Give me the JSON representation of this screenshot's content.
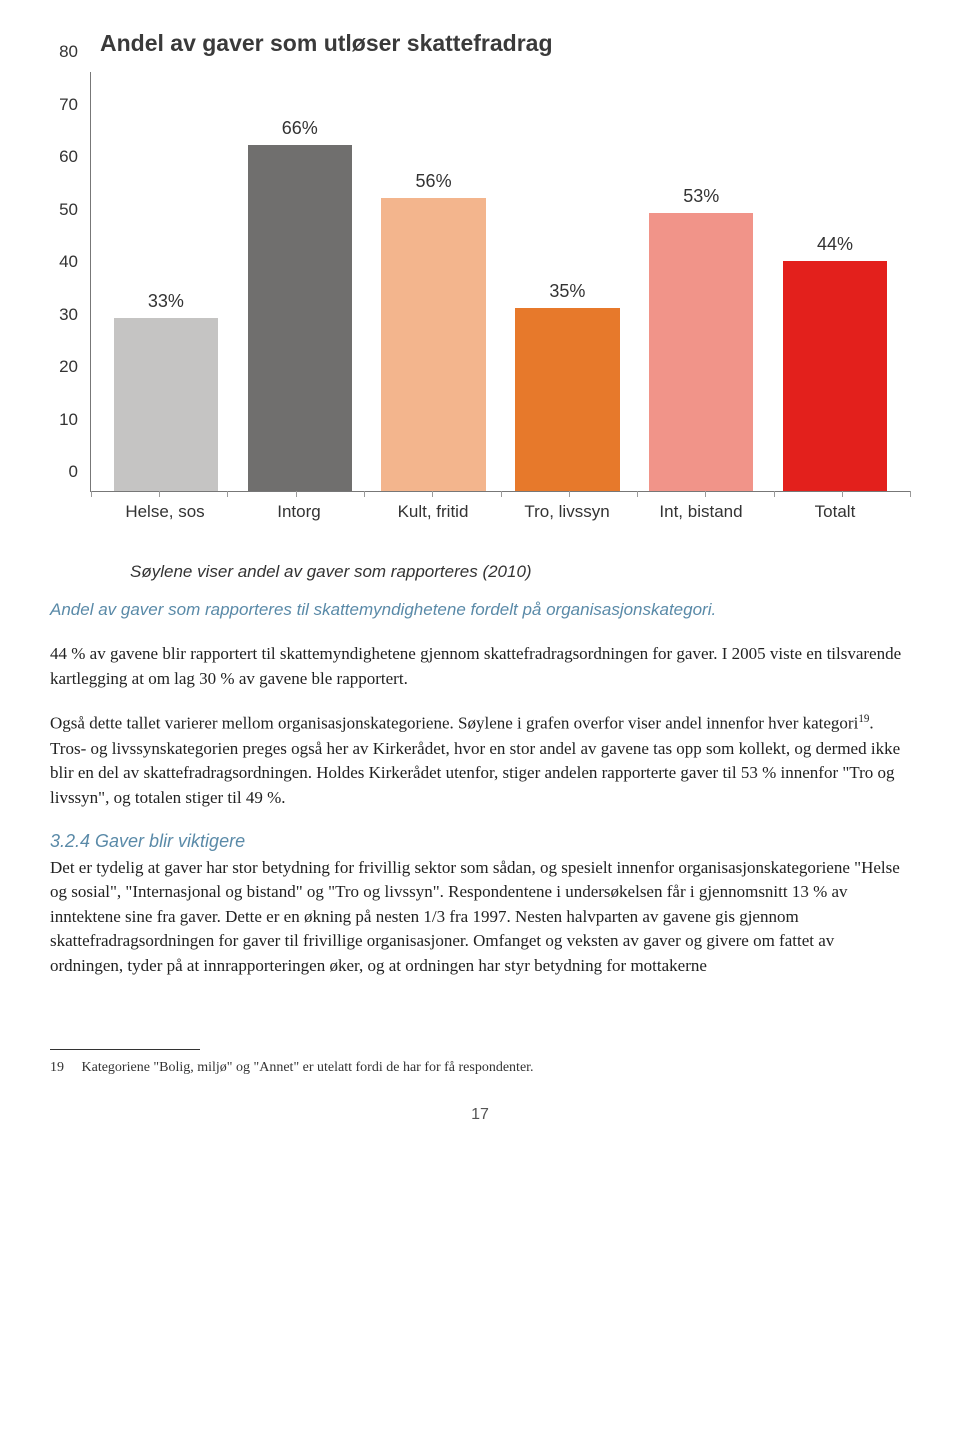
{
  "chart": {
    "title": "Andel av gaver som utløser skattefradrag",
    "type": "bar",
    "y_max": 80,
    "y_ticks": [
      0,
      10,
      20,
      30,
      40,
      50,
      60,
      70,
      80
    ],
    "categories": [
      "Helse, sos",
      "Intorg",
      "Kult, fritid",
      "Tro, livssyn",
      "Int, bistand",
      "Totalt"
    ],
    "values": [
      33,
      66,
      56,
      35,
      53,
      44
    ],
    "value_labels": [
      "33%",
      "66%",
      "56%",
      "35%",
      "53%",
      "44%"
    ],
    "bar_colors": [
      "#c5c4c3",
      "#706f6e",
      "#f3b58d",
      "#e7792b",
      "#f19489",
      "#e3201c"
    ],
    "title_color": "#3a3a3a",
    "title_fontsize": 23,
    "axis_font": "Trebuchet MS",
    "axis_fontsize": 17,
    "background_color": "#ffffff",
    "axis_color": "#777777",
    "subtitle": "Søylene viser andel av gaver som rapporteres (2010)"
  },
  "caption": "Andel av gaver som rapporteres til skattemyndighetene fordelt på organisasjonskategori.",
  "para1": "44 % av gavene blir rapportert til skattemyndighetene gjennom skattefradragsordningen for gaver. I 2005 viste en tilsvarende kartlegging at om lag 30 % av gavene ble rapportert.",
  "para2_a": "Også dette tallet varierer mellom organisasjonskategoriene. Søylene i grafen overfor viser andel innenfor hver kategori",
  "para2_sup": "19",
  "para2_b": ". Tros- og livssynskategorien preges også her av Kirkerådet, hvor en stor andel av gavene tas opp som kollekt, og dermed ikke blir en del av skattefradragsordningen. Holdes Kirkerådet utenfor, stiger andelen rapporterte gaver til 53 % innenfor \"Tro og livssyn\", og totalen stiger til 49 %.",
  "section_heading": "3.2.4 Gaver blir viktigere",
  "para3": "Det er tydelig at gaver har stor betydning for frivillig sektor som sådan, og spesielt innenfor organisasjonskategoriene \"Helse og sosial\", \"Internasjonal og bistand\" og \"Tro og livssyn\". Respondentene i undersøkelsen får i gjennomsnitt 13 % av inntektene sine fra gaver. Dette er en økning på nesten 1/3 fra 1997. Nesten halvparten av gavene gis gjennom skattefradragsordningen for gaver til frivillige organisasjoner. Omfanget og veksten av gaver og givere om fattet av ordningen, tyder på at innrapporteringen øker, og at ordningen har styr betydning for mottakerne",
  "footnote": {
    "num": "19",
    "text": "Kategoriene \"Bolig, miljø\" og \"Annet\" er utelatt fordi de har for få respondenter."
  },
  "page_number": "17"
}
